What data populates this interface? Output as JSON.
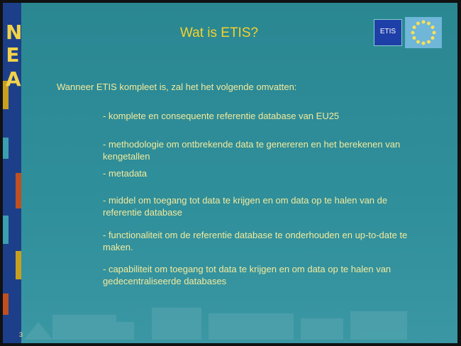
{
  "side_logo": [
    "N",
    "E",
    "A"
  ],
  "title": "Wat is ETIS?",
  "logo_text": "ETIS",
  "intro": "Wanneer ETIS kompleet is, zal het het volgende omvatten:",
  "items": [
    "- komplete en consequente referentie database van EU25",
    "- methodologie om ontbrekende data te genereren en het berekenen van kengetallen",
    "- metadata",
    "- middel om toegang tot data te krijgen en om data op te halen van de referentie database",
    "-  functionaliteit om de referentie database te onderhouden en up-to-date te maken.",
    "- capabiliteit om toegang tot data te krijgen en om data op te halen van gedecentraliseerde databases"
  ],
  "page_number": "3"
}
